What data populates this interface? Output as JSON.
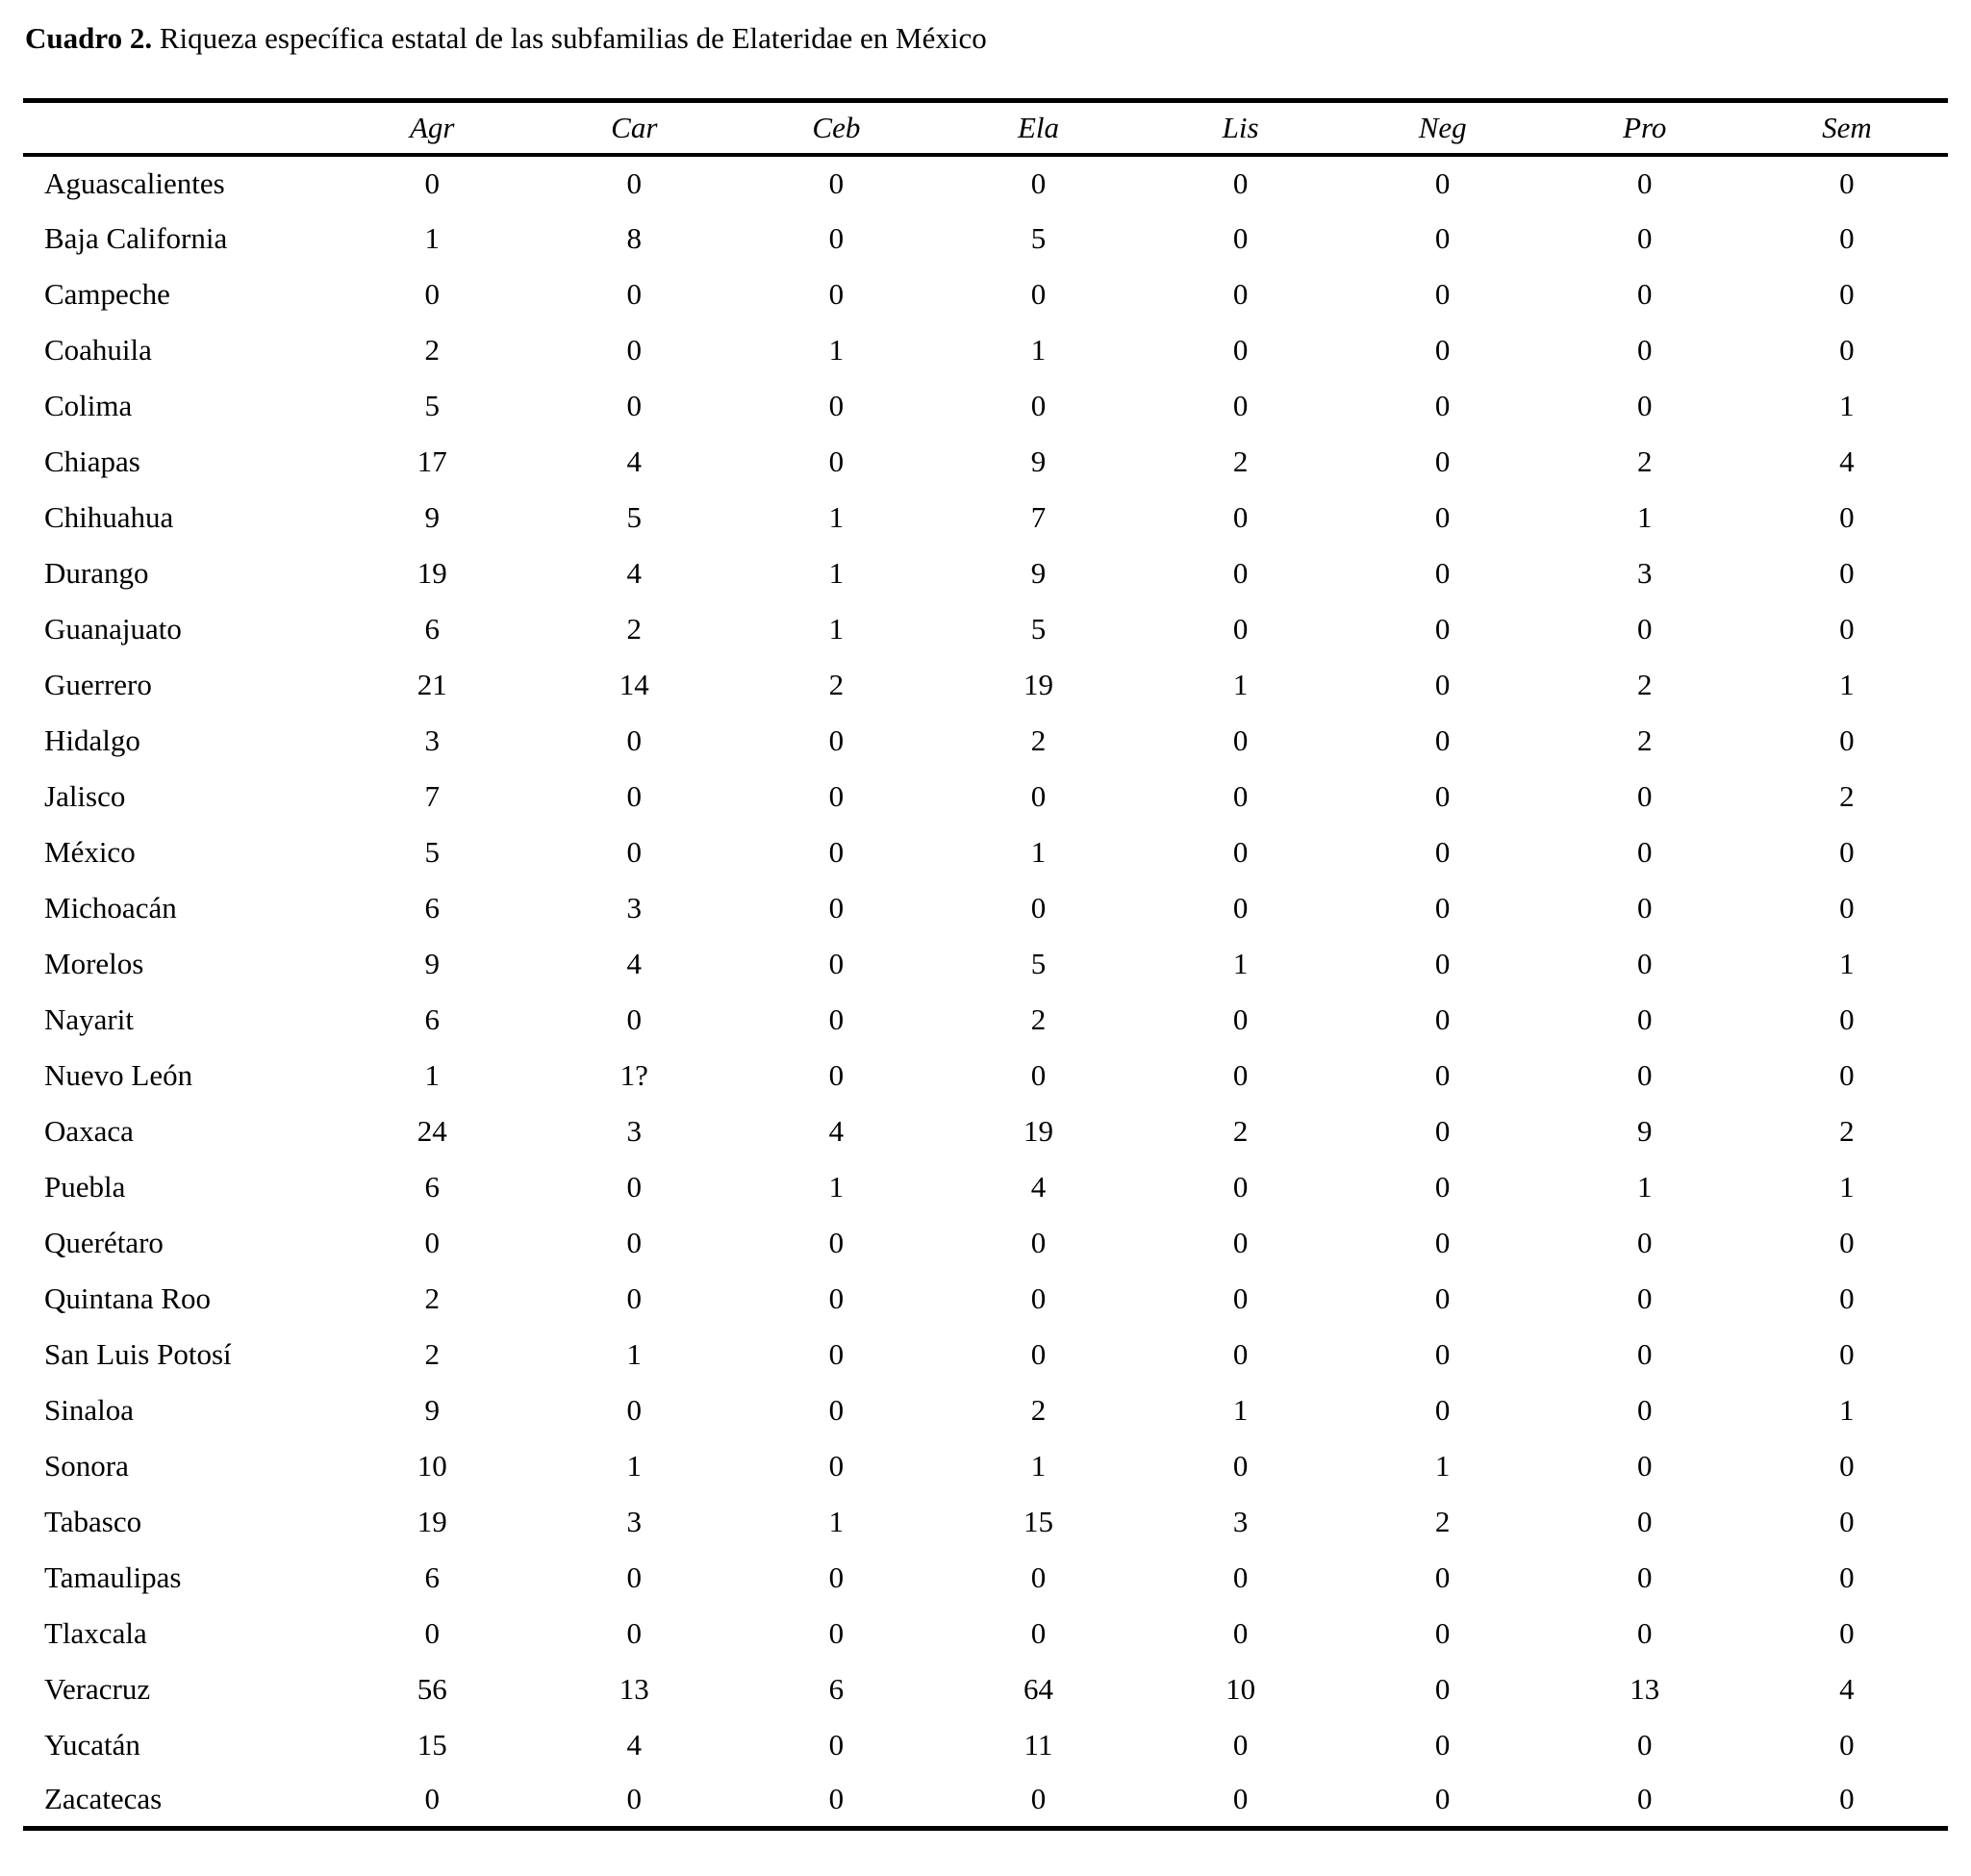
{
  "title": {
    "label": "Cuadro 2.",
    "text": "Riqueza específica estatal de las subfamilias de Elateridae en México"
  },
  "table": {
    "state_header": "",
    "columns": [
      "Agr",
      "Car",
      "Ceb",
      "Ela",
      "Lis",
      "Neg",
      "Pro",
      "Sem"
    ],
    "rows": [
      {
        "state": "Aguascalientes",
        "values": [
          "0",
          "0",
          "0",
          "0",
          "0",
          "0",
          "0",
          "0"
        ]
      },
      {
        "state": "Baja California",
        "values": [
          "1",
          "8",
          "0",
          "5",
          "0",
          "0",
          "0",
          "0"
        ]
      },
      {
        "state": "Campeche",
        "values": [
          "0",
          "0",
          "0",
          "0",
          "0",
          "0",
          "0",
          "0"
        ]
      },
      {
        "state": "Coahuila",
        "values": [
          "2",
          "0",
          "1",
          "1",
          "0",
          "0",
          "0",
          "0"
        ]
      },
      {
        "state": "Colima",
        "values": [
          "5",
          "0",
          "0",
          "0",
          "0",
          "0",
          "0",
          "1"
        ]
      },
      {
        "state": "Chiapas",
        "values": [
          "17",
          "4",
          "0",
          "9",
          "2",
          "0",
          "2",
          "4"
        ]
      },
      {
        "state": "Chihuahua",
        "values": [
          "9",
          "5",
          "1",
          "7",
          "0",
          "0",
          "1",
          "0"
        ]
      },
      {
        "state": "Durango",
        "values": [
          "19",
          "4",
          "1",
          "9",
          "0",
          "0",
          "3",
          "0"
        ]
      },
      {
        "state": "Guanajuato",
        "values": [
          "6",
          "2",
          "1",
          "5",
          "0",
          "0",
          "0",
          "0"
        ]
      },
      {
        "state": "Guerrero",
        "values": [
          "21",
          "14",
          "2",
          "19",
          "1",
          "0",
          "2",
          "1"
        ]
      },
      {
        "state": "Hidalgo",
        "values": [
          "3",
          "0",
          "0",
          "2",
          "0",
          "0",
          "2",
          "0"
        ]
      },
      {
        "state": "Jalisco",
        "values": [
          "7",
          "0",
          "0",
          "0",
          "0",
          "0",
          "0",
          "2"
        ]
      },
      {
        "state": "México",
        "values": [
          "5",
          "0",
          "0",
          "1",
          "0",
          "0",
          "0",
          "0"
        ]
      },
      {
        "state": "Michoacán",
        "values": [
          "6",
          "3",
          "0",
          "0",
          "0",
          "0",
          "0",
          "0"
        ]
      },
      {
        "state": "Morelos",
        "values": [
          "9",
          "4",
          "0",
          "5",
          "1",
          "0",
          "0",
          "1"
        ]
      },
      {
        "state": "Nayarit",
        "values": [
          "6",
          "0",
          "0",
          "2",
          "0",
          "0",
          "0",
          "0"
        ]
      },
      {
        "state": "Nuevo León",
        "values": [
          "1",
          "1?",
          "0",
          "0",
          "0",
          "0",
          "0",
          "0"
        ]
      },
      {
        "state": "Oaxaca",
        "values": [
          "24",
          "3",
          "4",
          "19",
          "2",
          "0",
          "9",
          "2"
        ]
      },
      {
        "state": "Puebla",
        "values": [
          "6",
          "0",
          "1",
          "4",
          "0",
          "0",
          "1",
          "1"
        ]
      },
      {
        "state": "Querétaro",
        "values": [
          "0",
          "0",
          "0",
          "0",
          "0",
          "0",
          "0",
          "0"
        ]
      },
      {
        "state": "Quintana Roo",
        "values": [
          "2",
          "0",
          "0",
          "0",
          "0",
          "0",
          "0",
          "0"
        ]
      },
      {
        "state": "San Luis Potosí",
        "values": [
          "2",
          "1",
          "0",
          "0",
          "0",
          "0",
          "0",
          "0"
        ]
      },
      {
        "state": "Sinaloa",
        "values": [
          "9",
          "0",
          "0",
          "2",
          "1",
          "0",
          "0",
          "1"
        ]
      },
      {
        "state": "Sonora",
        "values": [
          "10",
          "1",
          "0",
          "1",
          "0",
          "1",
          "0",
          "0"
        ]
      },
      {
        "state": "Tabasco",
        "values": [
          "19",
          "3",
          "1",
          "15",
          "3",
          "2",
          "0",
          "0"
        ]
      },
      {
        "state": "Tamaulipas",
        "values": [
          "6",
          "0",
          "0",
          "0",
          "0",
          "0",
          "0",
          "0"
        ]
      },
      {
        "state": "Tlaxcala",
        "values": [
          "0",
          "0",
          "0",
          "0",
          "0",
          "0",
          "0",
          "0"
        ]
      },
      {
        "state": "Veracruz",
        "values": [
          "56",
          "13",
          "6",
          "64",
          "10",
          "0",
          "13",
          "4"
        ]
      },
      {
        "state": "Yucatán",
        "values": [
          "15",
          "4",
          "0",
          "11",
          "0",
          "0",
          "0",
          "0"
        ]
      },
      {
        "state": "Zacatecas",
        "values": [
          "0",
          "0",
          "0",
          "0",
          "0",
          "0",
          "0",
          "0"
        ]
      }
    ]
  }
}
